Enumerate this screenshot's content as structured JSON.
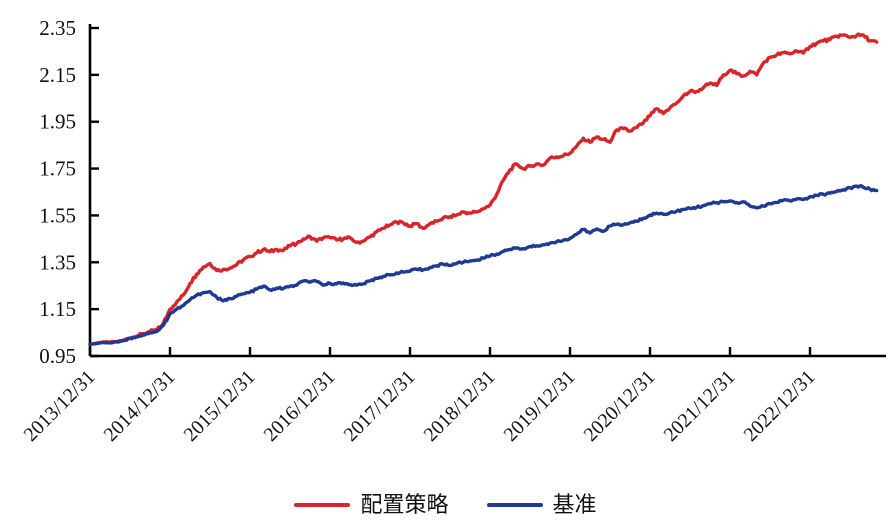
{
  "chart_data": {
    "type": "line",
    "title": "",
    "xlabel": "",
    "ylabel": "",
    "grid": "off",
    "legend_position": "bottom-center",
    "axis_color": "#000000",
    "ylim": [
      0.95,
      2.35
    ],
    "y_ticks": [
      0.95,
      1.15,
      1.35,
      1.55,
      1.75,
      1.95,
      2.15,
      2.35
    ],
    "x_tick_labels": [
      "2013/12/31",
      "2014/12/31",
      "2015/12/31",
      "2016/12/31",
      "2017/12/31",
      "2018/12/31",
      "2019/12/31",
      "2020/12/31",
      "2021/12/31",
      "2022/12/31"
    ],
    "x_start": "2013/12",
    "x_end": "2023/10",
    "sampling": "monthly",
    "series": [
      {
        "key": "strategy",
        "name": "配置策略",
        "color": "#d9252a",
        "values": [
          1.0,
          1.005,
          1.01,
          1.008,
          1.012,
          1.018,
          1.027,
          1.035,
          1.045,
          1.055,
          1.06,
          1.09,
          1.15,
          1.18,
          1.21,
          1.26,
          1.3,
          1.33,
          1.345,
          1.315,
          1.32,
          1.325,
          1.34,
          1.36,
          1.375,
          1.39,
          1.405,
          1.395,
          1.405,
          1.4,
          1.42,
          1.43,
          1.45,
          1.46,
          1.44,
          1.455,
          1.455,
          1.445,
          1.45,
          1.455,
          1.435,
          1.44,
          1.458,
          1.48,
          1.495,
          1.51,
          1.522,
          1.518,
          1.505,
          1.515,
          1.495,
          1.515,
          1.525,
          1.54,
          1.545,
          1.552,
          1.565,
          1.56,
          1.565,
          1.578,
          1.594,
          1.64,
          1.7,
          1.745,
          1.77,
          1.75,
          1.76,
          1.77,
          1.765,
          1.795,
          1.8,
          1.805,
          1.815,
          1.845,
          1.88,
          1.862,
          1.885,
          1.875,
          1.862,
          1.915,
          1.92,
          1.91,
          1.925,
          1.945,
          1.975,
          2.005,
          1.985,
          2.01,
          2.03,
          2.06,
          2.08,
          2.08,
          2.095,
          2.115,
          2.105,
          2.15,
          2.17,
          2.155,
          2.145,
          2.165,
          2.15,
          2.2,
          2.225,
          2.235,
          2.245,
          2.24,
          2.252,
          2.243,
          2.272,
          2.285,
          2.295,
          2.3,
          2.315,
          2.32,
          2.31,
          2.318,
          2.32,
          2.295,
          2.29
        ]
      },
      {
        "key": "benchmark",
        "name": "基准",
        "color": "#1e3a93",
        "values": [
          1.0,
          1.003,
          1.008,
          1.006,
          1.01,
          1.015,
          1.025,
          1.032,
          1.04,
          1.05,
          1.055,
          1.08,
          1.13,
          1.15,
          1.165,
          1.19,
          1.21,
          1.22,
          1.225,
          1.2,
          1.185,
          1.195,
          1.205,
          1.215,
          1.222,
          1.235,
          1.248,
          1.232,
          1.24,
          1.238,
          1.248,
          1.252,
          1.27,
          1.265,
          1.268,
          1.252,
          1.26,
          1.258,
          1.262,
          1.255,
          1.252,
          1.258,
          1.27,
          1.282,
          1.29,
          1.296,
          1.305,
          1.308,
          1.312,
          1.32,
          1.318,
          1.328,
          1.335,
          1.342,
          1.337,
          1.345,
          1.35,
          1.356,
          1.36,
          1.368,
          1.377,
          1.385,
          1.396,
          1.405,
          1.412,
          1.408,
          1.418,
          1.42,
          1.425,
          1.432,
          1.438,
          1.444,
          1.452,
          1.47,
          1.49,
          1.475,
          1.492,
          1.482,
          1.505,
          1.512,
          1.51,
          1.518,
          1.525,
          1.538,
          1.552,
          1.56,
          1.555,
          1.562,
          1.568,
          1.575,
          1.58,
          1.585,
          1.592,
          1.6,
          1.605,
          1.608,
          1.612,
          1.605,
          1.608,
          1.59,
          1.582,
          1.59,
          1.6,
          1.605,
          1.615,
          1.612,
          1.62,
          1.618,
          1.63,
          1.636,
          1.64,
          1.645,
          1.652,
          1.66,
          1.668,
          1.675,
          1.67,
          1.662,
          1.656
        ]
      }
    ]
  }
}
